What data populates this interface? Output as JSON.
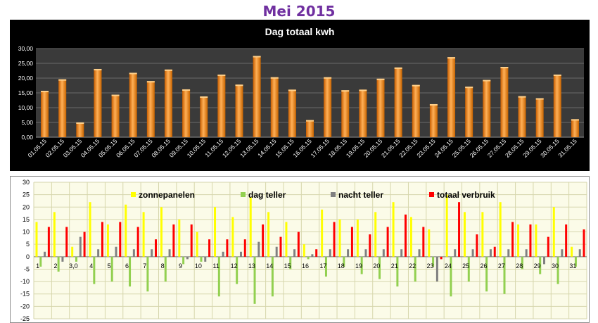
{
  "page_title": "Mei 2015",
  "chart_data": [
    {
      "type": "bar",
      "title": "Dag totaal kwh",
      "xlabel": "",
      "ylabel": "",
      "ylim": [
        0,
        30
      ],
      "yticks": [
        "0,00",
        "5,00",
        "10,00",
        "15,00",
        "20,00",
        "25,00",
        "30,00"
      ],
      "grid": true,
      "colors": {
        "background": "#000000",
        "plot_area": "#3a3a3a",
        "bar": "#f08a1e",
        "gridline": "#6a6a6a",
        "text": "#ffffff"
      },
      "categories": [
        "01.05.15",
        "02.05.15",
        "03.05.15",
        "04.05.15",
        "05.05.15",
        "06.05.15",
        "07.05.15",
        "08.05.15",
        "09.05.15",
        "10.05.15",
        "11.05.15",
        "12.05.15",
        "13.05.15",
        "14.05.15",
        "15.05.15",
        "16.05.15",
        "17.05.15",
        "18.05.15",
        "19.05.15",
        "20.05.15",
        "21.05.15",
        "22.05.15",
        "23.05.15",
        "24.05.15",
        "25.05.15",
        "26.05.15",
        "27.05.15",
        "28.05.15",
        "29.05.15",
        "30.05.15",
        "31.05.15"
      ],
      "values": [
        15.7,
        19.6,
        5.0,
        23.1,
        14.4,
        21.8,
        19.0,
        22.9,
        16.2,
        13.8,
        21.2,
        17.8,
        27.5,
        20.3,
        16.1,
        5.8,
        20.3,
        15.9,
        16.1,
        19.8,
        23.6,
        17.7,
        11.2,
        27.1,
        17.1,
        19.4,
        23.8,
        13.9,
        13.2,
        21.2,
        6.1
      ]
    },
    {
      "type": "bar",
      "title": "",
      "ylim": [
        -25,
        30
      ],
      "yticks": [
        "-25",
        "-20",
        "-15",
        "-10",
        "-5",
        "0",
        "5",
        "10",
        "15",
        "20",
        "25",
        "30"
      ],
      "grid": true,
      "legend_placement": "top",
      "categories": [
        "1",
        "2",
        "3,0",
        "4",
        "5",
        "6",
        "7",
        "8",
        "9",
        "10",
        "11",
        "12",
        "13",
        "14",
        "15",
        "16",
        "17",
        "18",
        "19",
        "20",
        "21",
        "22",
        "23",
        "24",
        "25",
        "26",
        "27",
        "28",
        "29",
        "30",
        "31"
      ],
      "series": [
        {
          "name": "zonnepanelen",
          "color": "#ffff00",
          "values": [
            14,
            18,
            4,
            22,
            13,
            21,
            18,
            20,
            15,
            10,
            20,
            16,
            24,
            18,
            14,
            5,
            19,
            15,
            15,
            18,
            22,
            16,
            11,
            25,
            18,
            18,
            22,
            13,
            13,
            20,
            4
          ]
        },
        {
          "name": "dag teller",
          "color": "#92d050",
          "values": [
            -4,
            -6,
            -2,
            -11,
            -10,
            -12,
            -14,
            -10,
            -3,
            -2,
            -16,
            -11,
            -19,
            -16,
            -5,
            -1,
            -8,
            -4,
            -7,
            -9,
            -12,
            -10,
            -4,
            -16,
            -10,
            -14,
            -15,
            -5,
            -7,
            -11,
            -4
          ]
        },
        {
          "name": "nacht teller",
          "color": "#808080",
          "values": [
            2,
            -2,
            8,
            3,
            4,
            3,
            3,
            3,
            -1,
            -2,
            2,
            2,
            6,
            4,
            3,
            1,
            3,
            3,
            3,
            3,
            3,
            3,
            -10,
            3,
            3,
            3,
            3,
            3,
            -3,
            3,
            3
          ]
        },
        {
          "name": "totaal verbruik",
          "color": "#ff0000",
          "values": [
            12,
            12,
            10,
            14,
            14,
            12,
            7,
            13,
            13,
            7,
            7,
            7,
            13,
            8,
            10,
            3,
            14,
            12,
            9,
            12,
            17,
            12,
            -1,
            22,
            9,
            4,
            14,
            13,
            8,
            13,
            11
          ]
        }
      ]
    }
  ]
}
